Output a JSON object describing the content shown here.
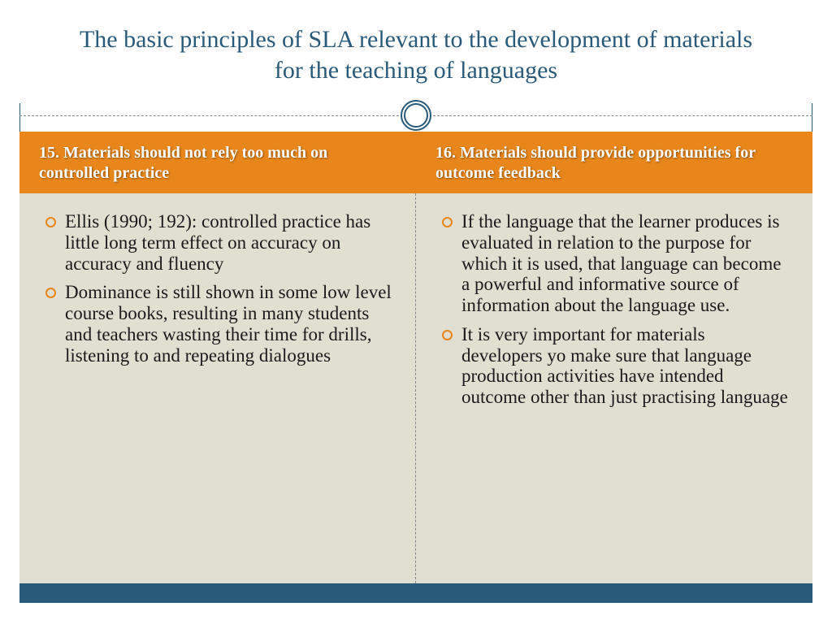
{
  "title": "The basic principles of SLA relevant to the development of materials for the teaching of languages",
  "columns": {
    "left": {
      "heading": "15. Materials should not rely too much on controlled practice",
      "bullets": [
        "Ellis (1990; 192): controlled practice has little long term effect on accuracy on accuracy and fluency",
        "Dominance is still shown in some low level course books, resulting in many students and teachers wasting their time for drills, listening to and repeating dialogues"
      ]
    },
    "right": {
      "heading": "16. Materials should provide opportunities for outcome feedback",
      "bullets": [
        "If the language that the learner produces is evaluated in relation to the purpose for which it is used, that language can become a powerful and informative source of information about the language use.",
        "It is very important for materials developers yo make sure that language production activities have intended outcome other than just practising language"
      ]
    }
  },
  "colors": {
    "title_color": "#2a5a7a",
    "orange_band": "#e8861c",
    "content_bg": "#e1ded2",
    "bottom_band": "#2a5a7a",
    "bullet_ring": "#e8861c",
    "body_text": "#1a1a1a",
    "heading_text": "#ffffff"
  }
}
